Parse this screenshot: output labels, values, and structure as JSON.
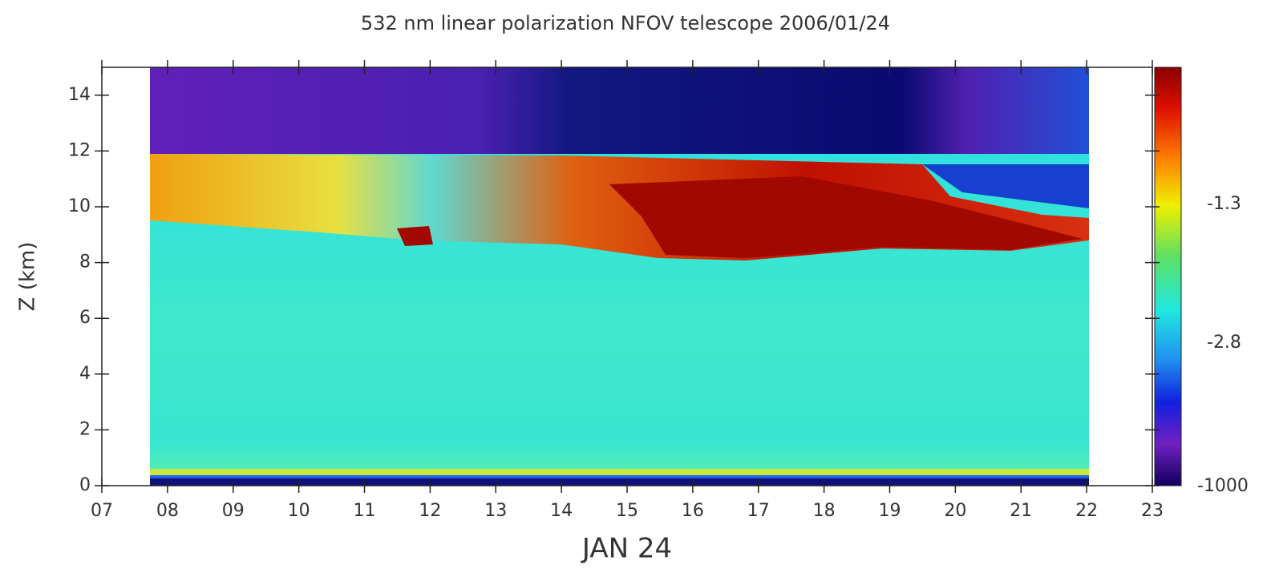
{
  "chart_data": {
    "type": "heatmap",
    "title": "532 nm linear polarization NFOV telescope 2006/01/24",
    "x_label": "JAN 24",
    "y_label": "Z (km)",
    "xlim": [
      7,
      23
    ],
    "xticks": [
      {
        "value": 7,
        "label": "07"
      },
      {
        "value": 8,
        "label": "08"
      },
      {
        "value": 9,
        "label": "09"
      },
      10,
      11,
      12,
      13,
      14,
      15,
      16,
      17,
      18,
      19,
      20,
      21,
      22,
      23
    ],
    "ylim": [
      0,
      15
    ],
    "yticks": [
      0,
      2,
      4,
      6,
      8,
      10,
      12,
      14
    ],
    "colorbar_labels": [
      "-1.3",
      "-2.8",
      "-1000"
    ]
  }
}
